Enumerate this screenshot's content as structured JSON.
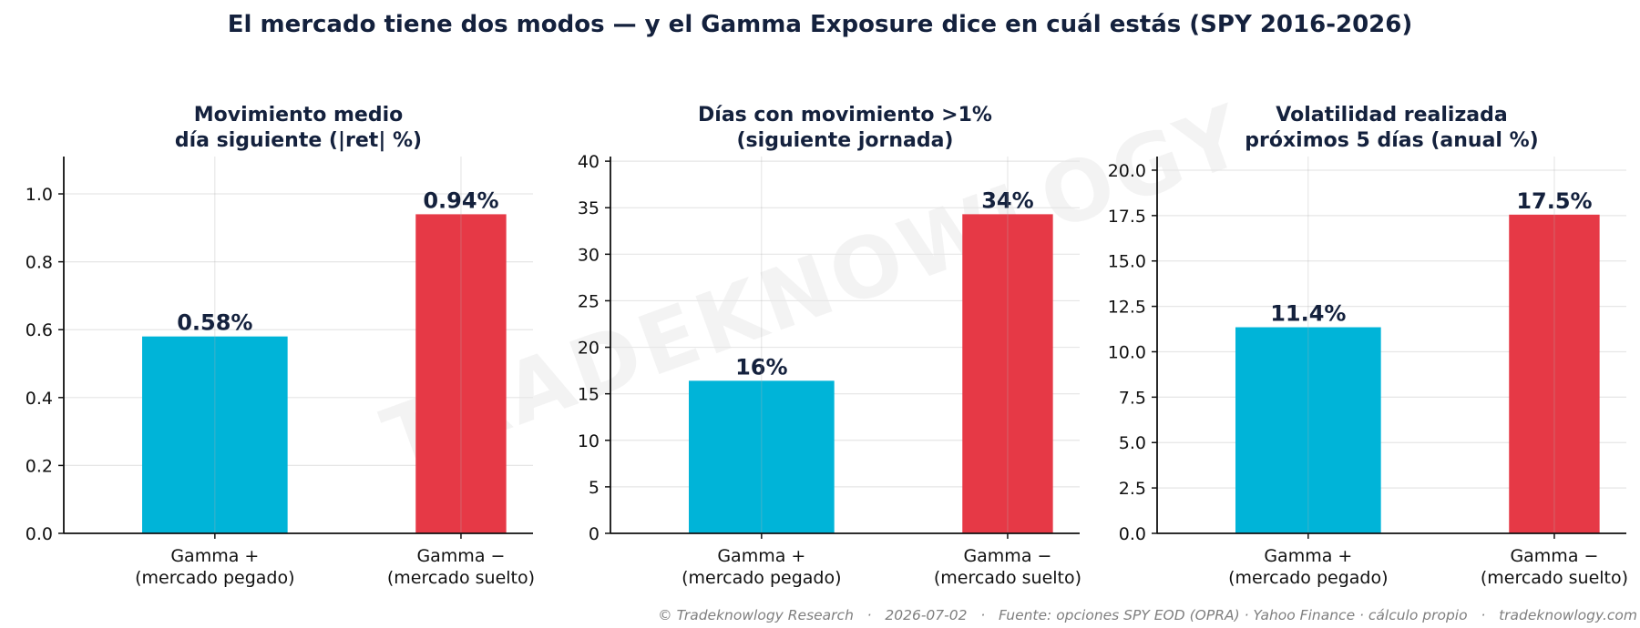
{
  "title": "El mercado tiene dos modos — y el Gamma Exposure dice en cuál estás (SPY 2016-2026)",
  "watermark": "TRADEKNOWLOGY",
  "footer": "© Tradeknowlogy Research   ·   2026-07-02   ·   Fuente: opciones SPY EOD (OPRA) · Yahoo Finance · cálculo propio   ·   tradeknowlogy.com",
  "colors": {
    "gamma_pos": "#00b4d8",
    "gamma_neg": "#e63946",
    "text": "#14213d"
  },
  "chart_data": [
    {
      "type": "bar",
      "title": [
        "Movimiento medio",
        "día siguiente (|ret| %)"
      ],
      "categories": [
        [
          "Gamma +",
          "(mercado pegado)"
        ],
        [
          "Gamma −",
          "(mercado suelto)"
        ]
      ],
      "values": [
        0.58,
        0.94
      ],
      "labels": [
        "0.58%",
        "0.94%"
      ],
      "ylim": [
        0,
        1.11
      ],
      "yticks": [
        0.0,
        0.2,
        0.4,
        0.6,
        0.8,
        1.0
      ],
      "ytick_labels": [
        "0.0",
        "0.2",
        "0.4",
        "0.6",
        "0.8",
        "1.0"
      ],
      "grid": true
    },
    {
      "type": "bar",
      "title": [
        "Días con movimiento >1%",
        "(siguiente jornada)"
      ],
      "categories": [
        [
          "Gamma +",
          "(mercado pegado)"
        ],
        [
          "Gamma −",
          "(mercado suelto)"
        ]
      ],
      "values": [
        16.4,
        34.3
      ],
      "labels": [
        "16%",
        "34%"
      ],
      "ylim": [
        0,
        40.5
      ],
      "yticks": [
        0,
        5,
        10,
        15,
        20,
        25,
        30,
        35,
        40
      ],
      "ytick_labels": [
        "0",
        "5",
        "10",
        "15",
        "20",
        "25",
        "30",
        "35",
        "40"
      ],
      "grid": true
    },
    {
      "type": "bar",
      "title": [
        "Volatilidad realizada",
        "próximos 5 días (anual %)"
      ],
      "categories": [
        [
          "Gamma +",
          "(mercado pegado)"
        ],
        [
          "Gamma −",
          "(mercado suelto)"
        ]
      ],
      "values": [
        11.35,
        17.55
      ],
      "labels": [
        "11.4%",
        "17.5%"
      ],
      "ylim": [
        0,
        20.75
      ],
      "yticks": [
        0.0,
        2.5,
        5.0,
        7.5,
        10.0,
        12.5,
        15.0,
        17.5,
        20.0
      ],
      "ytick_labels": [
        "0.0",
        "2.5",
        "5.0",
        "7.5",
        "10.0",
        "12.5",
        "15.0",
        "17.5",
        "20.0"
      ],
      "grid": true
    }
  ]
}
